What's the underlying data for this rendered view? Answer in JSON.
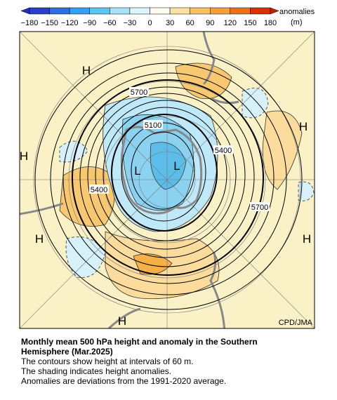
{
  "colorbar": {
    "ticks": [
      "−180",
      "−150",
      "−120",
      "−90",
      "−60",
      "−30",
      "0",
      "30",
      "60",
      "90",
      "120",
      "150",
      "180"
    ],
    "label": "anomalies",
    "unit": "(m)"
  },
  "map": {
    "contour_labels": [
      "5700",
      "5100",
      "5400",
      "5400",
      "5700"
    ],
    "high_labels": [
      "H",
      "H",
      "H",
      "H",
      "H",
      "H"
    ],
    "low_labels": [
      "L",
      "L"
    ],
    "credit": "CPD/JMA"
  },
  "caption": {
    "title_line1": "Monthly mean 500 hPa height and anomaly in the Southern",
    "title_line2": "Hemisphere (Mar.2025)",
    "lines": [
      "The contours show height at intervals of 60 m.",
      "The shading indicates height anomalies.",
      "Anomalies are deviations from the 1991-2020 average."
    ]
  }
}
